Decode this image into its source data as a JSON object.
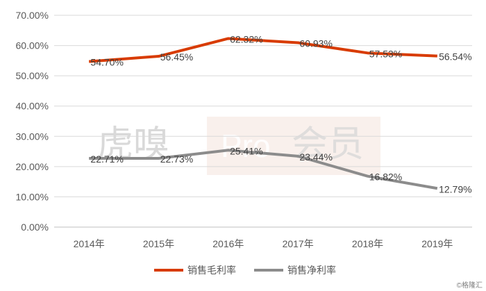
{
  "chart_data": {
    "type": "line",
    "categories": [
      "2014年",
      "2015年",
      "2016年",
      "2017年",
      "2018年",
      "2019年"
    ],
    "series": [
      {
        "name": "销售毛利率",
        "values": [
          54.7,
          56.45,
          62.32,
          60.93,
          57.53,
          56.54
        ],
        "labels": [
          "54.70%",
          "56.45%",
          "62.32%",
          "60.93%",
          "57.53%",
          "56.54%"
        ],
        "color": "#d83b01"
      },
      {
        "name": "销售净利率",
        "values": [
          22.71,
          22.73,
          25.41,
          23.44,
          16.82,
          12.79
        ],
        "labels": [
          "22.71%",
          "22.73%",
          "25.41%",
          "23.44%",
          "16.82%",
          "12.79%"
        ],
        "color": "#8c8c8c"
      }
    ],
    "ylim": [
      0,
      70
    ],
    "yticks": [
      "0.00%",
      "10.00%",
      "20.00%",
      "30.00%",
      "40.00%",
      "50.00%",
      "60.00%",
      "70.00%"
    ],
    "grid": true,
    "legend_position": "bottom-center"
  },
  "watermark": {
    "text_left": "虎嗅",
    "text_badge": "Pro",
    "text_right": "会员",
    "badge_color": "#f4e3dc"
  },
  "credit": "©格隆汇"
}
